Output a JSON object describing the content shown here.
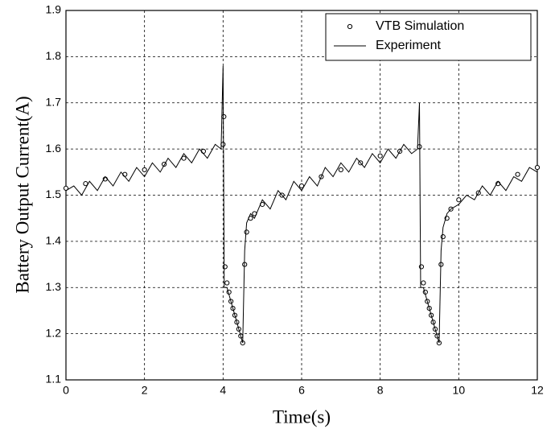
{
  "chart_data": {
    "type": "line-scatter",
    "x_label": "Time(s)",
    "y_label": "Battery Output Current(A)",
    "xlim": [
      0,
      12
    ],
    "ylim": [
      1.1,
      1.9
    ],
    "xticks": [
      0,
      2,
      4,
      6,
      8,
      10,
      12
    ],
    "yticks": [
      1.1,
      1.2,
      1.3,
      1.4,
      1.5,
      1.6,
      1.7,
      1.8,
      1.9
    ],
    "grid": true,
    "legend": "top-right",
    "series": [
      {
        "name": "VTB Simulation",
        "color": "#000000",
        "marker": "circle",
        "x": [
          0,
          0.5,
          1,
          1.5,
          2,
          2.5,
          3,
          3.5,
          4.0,
          4.02,
          4.05,
          4.1,
          4.15,
          4.2,
          4.25,
          4.3,
          4.35,
          4.4,
          4.45,
          4.5,
          4.55,
          4.6,
          4.7,
          4.8,
          5,
          5.5,
          6,
          6.5,
          7,
          7.5,
          8,
          8.5,
          9,
          9.05,
          9.1,
          9.15,
          9.2,
          9.25,
          9.3,
          9.35,
          9.4,
          9.45,
          9.5,
          9.55,
          9.6,
          9.7,
          9.8,
          10,
          10.5,
          11,
          11.5,
          12
        ],
        "values": [
          1.515,
          1.525,
          1.535,
          1.545,
          1.555,
          1.567,
          1.58,
          1.595,
          1.61,
          1.67,
          1.345,
          1.31,
          1.29,
          1.27,
          1.255,
          1.24,
          1.225,
          1.21,
          1.195,
          1.18,
          1.35,
          1.42,
          1.45,
          1.46,
          1.48,
          1.5,
          1.52,
          1.54,
          1.555,
          1.57,
          1.585,
          1.595,
          1.605,
          1.345,
          1.31,
          1.29,
          1.27,
          1.255,
          1.24,
          1.225,
          1.21,
          1.195,
          1.18,
          1.35,
          1.41,
          1.45,
          1.47,
          1.49,
          1.505,
          1.525,
          1.545,
          1.56
        ]
      },
      {
        "name": "Experiment",
        "color": "#000000",
        "marker": "line",
        "x": [
          0,
          0.2,
          0.4,
          0.6,
          0.8,
          1.0,
          1.2,
          1.4,
          1.6,
          1.8,
          2.0,
          2.2,
          2.4,
          2.6,
          2.8,
          3.0,
          3.2,
          3.4,
          3.6,
          3.8,
          3.95,
          4.0,
          4.03,
          4.1,
          4.2,
          4.3,
          4.4,
          4.5,
          4.55,
          4.6,
          4.7,
          4.8,
          5.0,
          5.2,
          5.4,
          5.6,
          5.8,
          6.0,
          6.2,
          6.4,
          6.6,
          6.8,
          7.0,
          7.2,
          7.4,
          7.6,
          7.8,
          8.0,
          8.2,
          8.4,
          8.6,
          8.8,
          8.95,
          9.0,
          9.03,
          9.1,
          9.2,
          9.3,
          9.4,
          9.5,
          9.55,
          9.6,
          9.7,
          9.8,
          10.0,
          10.2,
          10.4,
          10.6,
          10.8,
          11.0,
          11.2,
          11.4,
          11.6,
          11.8,
          12.0
        ],
        "values": [
          1.51,
          1.52,
          1.5,
          1.53,
          1.51,
          1.54,
          1.52,
          1.55,
          1.53,
          1.56,
          1.54,
          1.57,
          1.55,
          1.58,
          1.56,
          1.59,
          1.57,
          1.6,
          1.58,
          1.61,
          1.6,
          1.78,
          1.3,
          1.3,
          1.27,
          1.24,
          1.21,
          1.18,
          1.38,
          1.44,
          1.46,
          1.45,
          1.49,
          1.47,
          1.51,
          1.49,
          1.53,
          1.51,
          1.54,
          1.52,
          1.56,
          1.54,
          1.57,
          1.55,
          1.58,
          1.56,
          1.59,
          1.57,
          1.6,
          1.58,
          1.61,
          1.59,
          1.6,
          1.7,
          1.3,
          1.3,
          1.27,
          1.24,
          1.21,
          1.18,
          1.38,
          1.43,
          1.46,
          1.47,
          1.48,
          1.5,
          1.49,
          1.52,
          1.5,
          1.53,
          1.51,
          1.54,
          1.53,
          1.56,
          1.55
        ]
      }
    ]
  }
}
